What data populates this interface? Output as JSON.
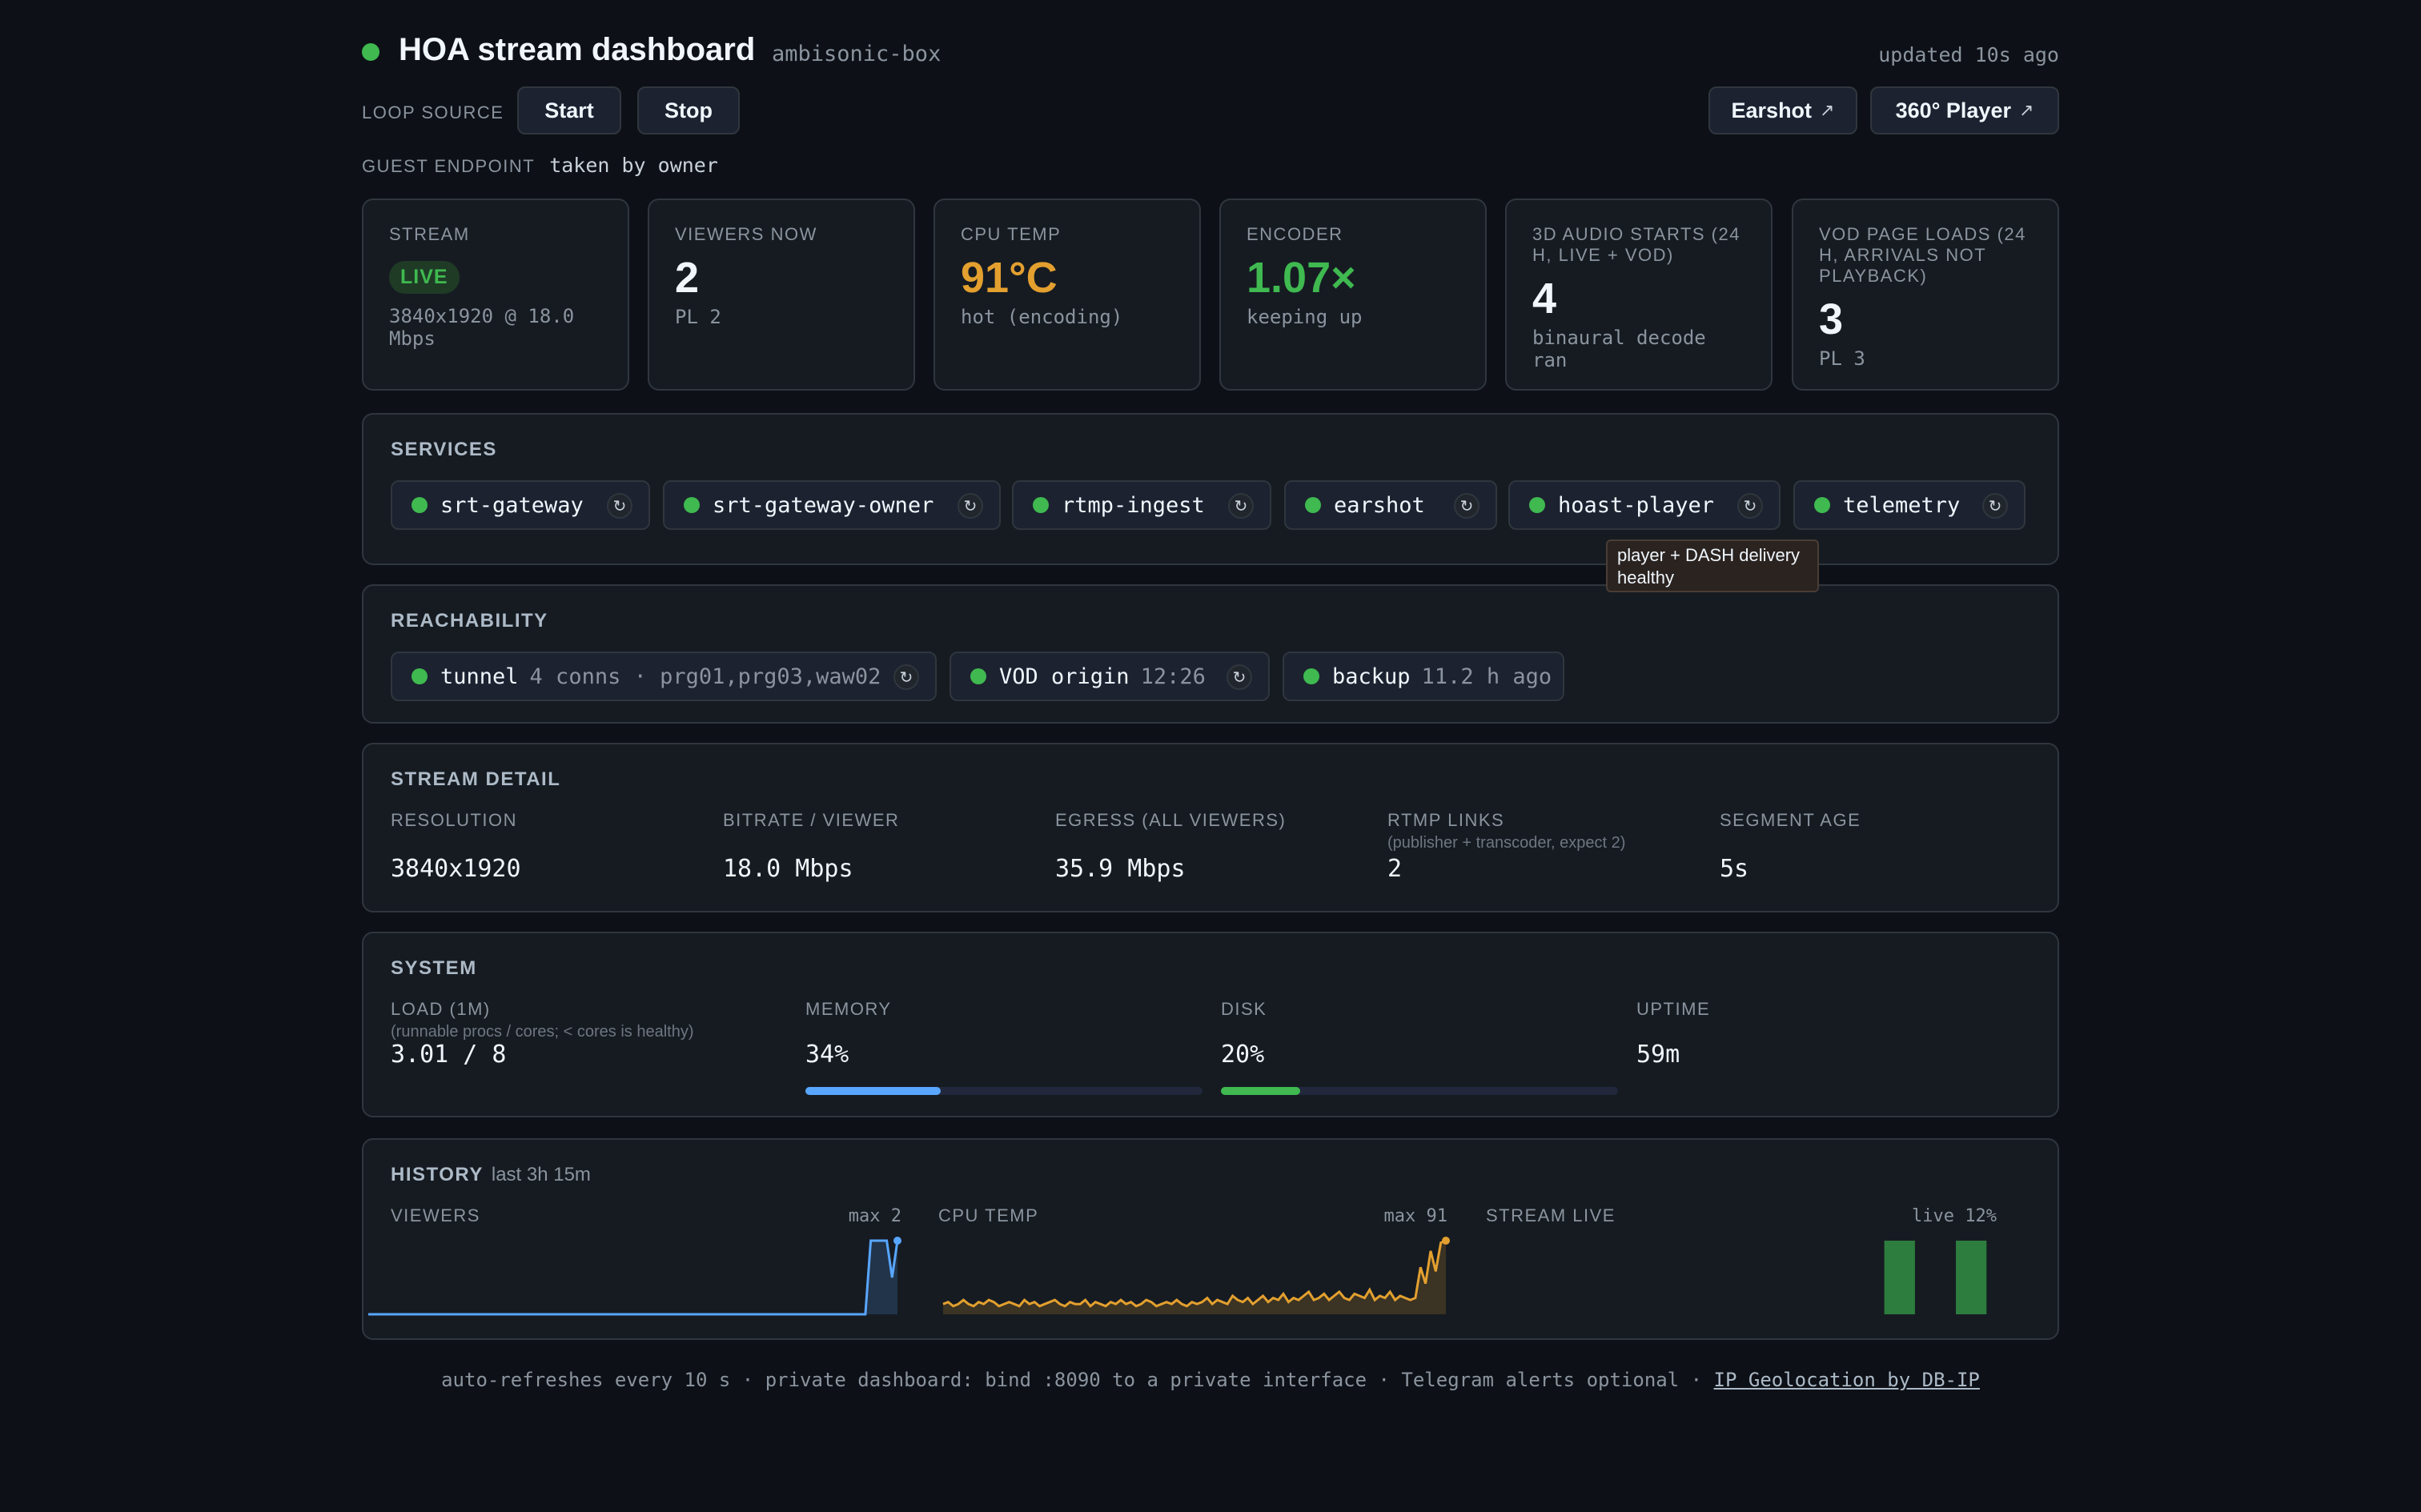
{
  "header": {
    "title": "HOA stream dashboard",
    "host": "ambisonic-box",
    "updated": "updated 10s ago"
  },
  "controls": {
    "loop_label": "LOOP SOURCE",
    "start_label": "Start",
    "stop_label": "Stop",
    "earshot_label": "Earshot",
    "player_label": "360° Player",
    "external_icon": "↗"
  },
  "guest": {
    "label": "GUEST ENDPOINT",
    "value": "taken by owner"
  },
  "cards": {
    "stream": {
      "label": "STREAM",
      "badge": "LIVE",
      "sub": "3840x1920 @ 18.0 Mbps"
    },
    "viewers": {
      "label": "VIEWERS NOW",
      "value": "2",
      "sub": "PL 2"
    },
    "cpu": {
      "label": "CPU TEMP",
      "value": "91°C",
      "sub": "hot (encoding)",
      "color": "#e3a02f"
    },
    "encoder": {
      "label": "ENCODER",
      "value": "1.07×",
      "sub": "keeping up",
      "color": "#3fb950"
    },
    "audio": {
      "label": "3D AUDIO STARTS (24 H, LIVE + VOD)",
      "value": "4",
      "sub": "binaural decode ran"
    },
    "vod": {
      "label": "VOD PAGE LOADS (24 H, ARRIVALS NOT PLAYBACK)",
      "value": "3",
      "sub": "PL 3"
    }
  },
  "services": {
    "title": "SERVICES",
    "items": [
      {
        "name": "srt-gateway"
      },
      {
        "name": "srt-gateway-owner"
      },
      {
        "name": "rtmp-ingest"
      },
      {
        "name": "earshot"
      },
      {
        "name": "hoast-player"
      },
      {
        "name": "telemetry"
      }
    ],
    "tooltip": "player + DASH delivery healthy",
    "refresh_icon": "↻",
    "status_color": "#3fb950"
  },
  "reachability": {
    "title": "REACHABILITY",
    "tunnel": {
      "name": "tunnel",
      "meta": "4 conns · prg01,prg03,waw02"
    },
    "vod": {
      "name": "VOD origin",
      "meta": "12:26"
    },
    "backup": {
      "name": "backup",
      "meta": "11.2 h ago"
    }
  },
  "stream_detail": {
    "title": "STREAM DETAIL",
    "resolution": {
      "label": "RESOLUTION",
      "value": "3840x1920"
    },
    "bitrate": {
      "label": "BITRATE / VIEWER",
      "value": "18.0 Mbps"
    },
    "egress": {
      "label": "EGRESS (ALL VIEWERS)",
      "value": "35.9 Mbps"
    },
    "rtmp": {
      "label": "RTMP LINKS",
      "hint": "(publisher + transcoder, expect 2)",
      "value": "2"
    },
    "segment": {
      "label": "SEGMENT AGE",
      "value": "5s"
    }
  },
  "system": {
    "title": "SYSTEM",
    "load": {
      "label": "LOAD (1M)",
      "hint": "(runnable procs / cores; < cores is healthy)",
      "value": "3.01 / 8"
    },
    "memory": {
      "label": "MEMORY",
      "value": "34%",
      "fraction": 0.34,
      "color": "#58a6ff"
    },
    "disk": {
      "label": "DISK",
      "value": "20%",
      "fraction": 0.2,
      "color": "#3fb950"
    },
    "uptime": {
      "label": "UPTIME",
      "value": "59m"
    }
  },
  "history": {
    "title": "HISTORY",
    "range": "last 3h 15m",
    "viewers": {
      "label": "VIEWERS",
      "max_label": "max 2",
      "color": "#58a6ff"
    },
    "cpu": {
      "label": "CPU TEMP",
      "max_label": "max 91",
      "color": "#e3a02f"
    },
    "live": {
      "label": "STREAM LIVE",
      "max_label": "live 12%",
      "color": "#2d7d3e"
    }
  },
  "chart_data": [
    {
      "type": "area",
      "title": "VIEWERS",
      "ylim": [
        0,
        2
      ],
      "values": [
        0,
        0,
        0,
        0,
        0,
        0,
        0,
        0,
        0,
        0,
        0,
        0,
        0,
        0,
        0,
        0,
        0,
        0,
        0,
        0,
        0,
        0,
        0,
        0,
        0,
        0,
        0,
        0,
        0,
        0,
        0,
        0,
        0,
        0,
        0,
        0,
        0,
        0,
        0,
        0,
        0,
        0,
        0,
        0,
        0,
        0,
        0,
        0,
        0,
        0,
        0,
        0,
        0,
        0,
        0,
        0,
        0,
        0,
        0,
        0,
        0,
        0,
        0,
        0,
        0,
        0,
        0,
        0,
        0,
        0,
        0,
        0,
        0,
        0,
        0,
        0,
        0,
        0,
        0,
        0,
        0,
        0,
        0,
        0,
        0,
        0,
        0,
        0,
        0,
        0,
        0,
        0,
        0,
        0,
        2,
        2,
        2,
        2,
        1,
        2
      ]
    },
    {
      "type": "area",
      "title": "CPU TEMP",
      "ylim": [
        55,
        91
      ],
      "values": [
        60,
        61,
        59,
        60,
        62,
        60,
        59,
        61,
        60,
        62,
        61,
        59,
        60,
        61,
        60,
        59,
        62,
        60,
        61,
        59,
        60,
        61,
        62,
        60,
        59,
        61,
        60,
        60,
        62,
        59,
        61,
        60,
        59,
        61,
        60,
        62,
        60,
        61,
        59,
        60,
        62,
        61,
        59,
        60,
        61,
        60,
        62,
        60,
        59,
        61,
        60,
        61,
        63,
        60,
        62,
        61,
        60,
        64,
        62,
        61,
        63,
        60,
        62,
        64,
        61,
        63,
        62,
        65,
        61,
        63,
        62,
        64,
        66,
        62,
        63,
        65,
        62,
        64,
        66,
        63,
        62,
        65,
        64,
        63,
        67,
        62,
        64,
        63,
        66,
        62,
        64,
        63,
        62,
        63,
        78,
        70,
        86,
        76,
        90,
        91
      ]
    },
    {
      "type": "bar",
      "title": "STREAM LIVE",
      "ylim": [
        0,
        1
      ],
      "values": [
        0,
        0,
        0,
        0,
        0,
        0,
        0,
        0,
        0,
        0,
        0,
        0,
        0,
        0,
        0,
        0,
        0,
        0,
        0,
        0,
        0,
        0,
        0,
        0,
        0,
        0,
        0,
        0,
        0,
        0,
        0,
        0,
        0,
        0,
        0,
        0,
        0,
        0,
        0,
        0,
        0,
        0,
        0,
        0,
        0,
        0,
        0,
        0,
        0,
        0,
        0,
        0,
        0,
        0,
        0,
        0,
        0,
        0,
        0,
        0,
        0,
        0,
        0,
        0,
        0,
        0,
        0,
        0,
        0,
        0,
        0,
        0,
        0,
        0,
        0,
        0,
        0,
        0,
        1,
        1,
        1,
        1,
        1,
        1,
        0,
        0,
        0,
        0,
        0,
        0,
        0,
        0,
        1,
        1,
        1,
        1,
        1,
        1,
        0,
        0
      ]
    }
  ],
  "footer": {
    "text": "auto-refreshes every 10 s · private dashboard: bind :8090 to a private interface · Telegram alerts optional ·",
    "link": "IP Geolocation by DB-IP"
  }
}
